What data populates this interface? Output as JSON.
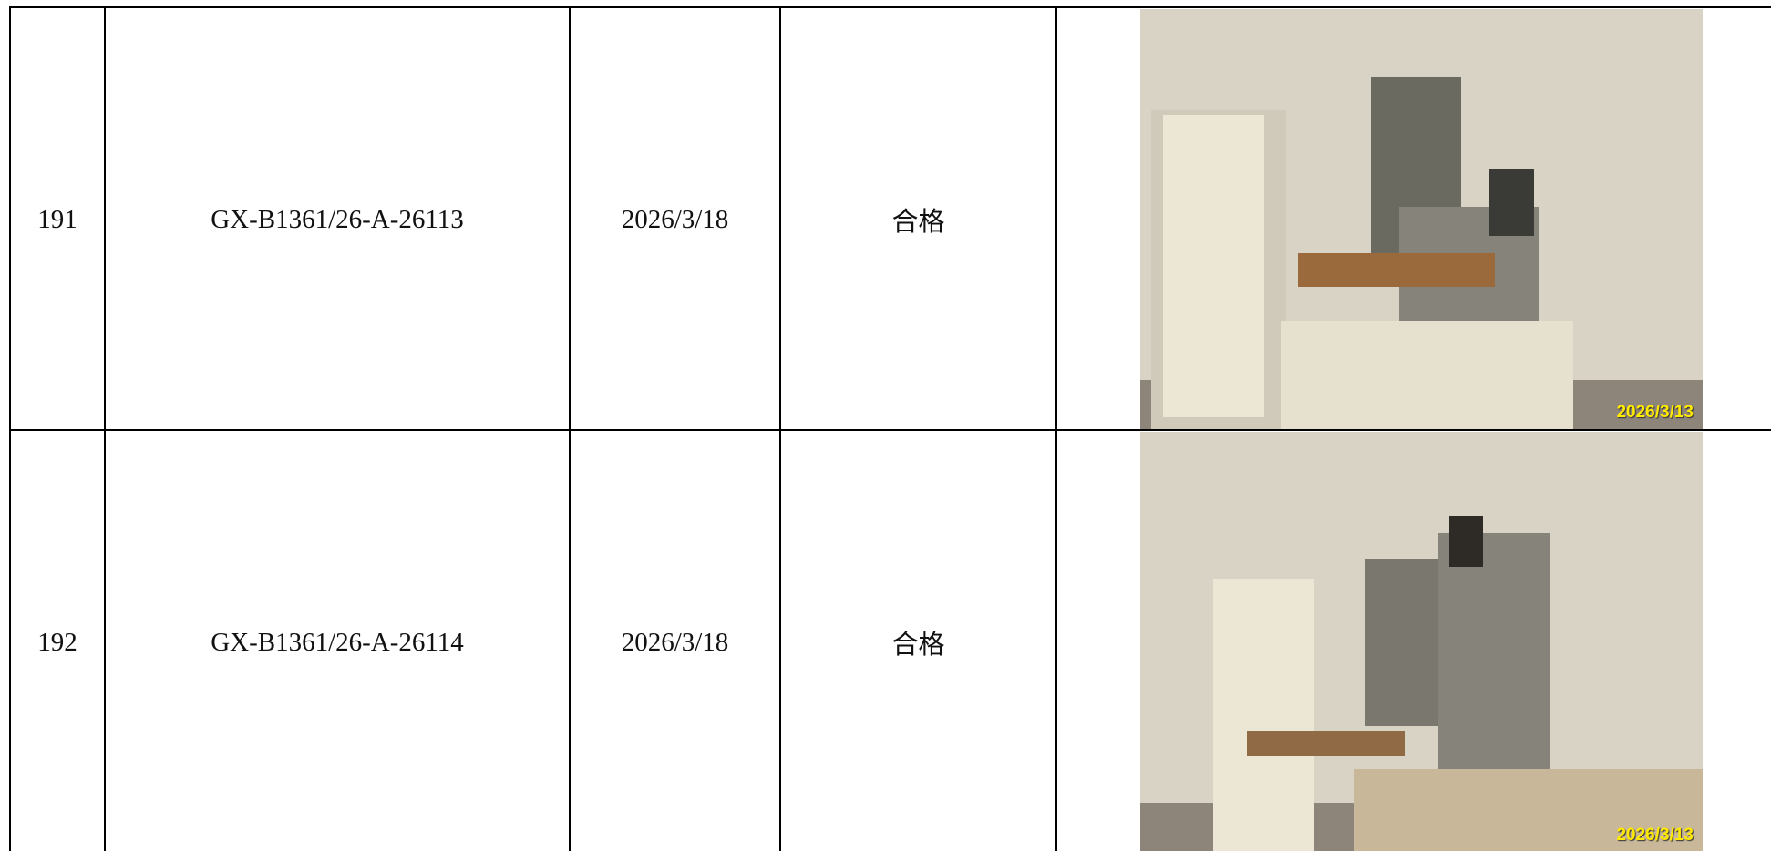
{
  "table": {
    "rows": [
      {
        "no": "191",
        "code": "GX-B1361/26-A-26113",
        "date": "2026/3/18",
        "result": "合格",
        "photo_date": "2026/3/13"
      },
      {
        "no": "192",
        "code": "GX-B1361/26-A-26114",
        "date": "2026/3/18",
        "result": "合格",
        "photo_date": "2026/3/13"
      }
    ]
  }
}
